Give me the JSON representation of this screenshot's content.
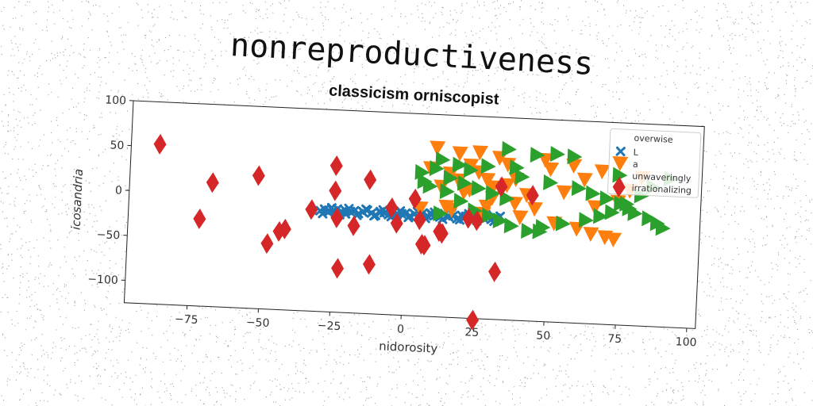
{
  "chart_data": {
    "type": "scatter",
    "title": "nonreproductiveness",
    "subtitle": "classicism orniscopist",
    "xlabel": "nidorosity",
    "ylabel": "icosandria",
    "xlim": [
      -97,
      103
    ],
    "ylim": [
      -125,
      100
    ],
    "xticks": [
      -75,
      -50,
      -25,
      0,
      25,
      50,
      75,
      100
    ],
    "yticks": [
      -100,
      -50,
      0,
      50,
      100
    ],
    "grid": false,
    "legend": {
      "title": "overwise",
      "position": "top-right"
    },
    "series": [
      {
        "name": "L",
        "marker": "x",
        "color": "#1f77b4",
        "x": [
          -30,
          -28.5,
          -27,
          -25.5,
          -24,
          -22.5,
          -21,
          -19.5,
          -18,
          -16.5,
          -15,
          -13.5,
          -12,
          -10.5,
          -9,
          -7.5,
          -6,
          -4.5,
          -3,
          -1.5,
          0,
          1.5,
          3,
          4.5,
          6,
          7.5,
          9,
          10.5,
          12,
          13.5,
          15,
          16.5,
          18,
          19.5,
          21,
          22.5,
          24,
          25.5,
          27,
          28.5,
          30,
          31.5,
          33,
          -29,
          -26,
          -23,
          -20,
          -17,
          -14,
          -11,
          -8,
          -5,
          -2,
          1,
          4,
          7,
          10,
          13,
          16,
          19,
          22,
          25,
          28,
          31,
          -27,
          -21,
          -15,
          -9,
          -3,
          3,
          9,
          15,
          21,
          27
        ],
        "y": [
          -13,
          -11,
          -14,
          -12,
          -10,
          -13,
          -15,
          -12,
          -11,
          -14,
          -12,
          -10,
          -13,
          -15,
          -11,
          -12,
          -14,
          -10,
          -13,
          -12,
          -11,
          -14,
          -12,
          -15,
          -10,
          -13,
          -11,
          -12,
          -14,
          -10,
          -13,
          -12,
          -15,
          -11,
          -12,
          -14,
          -10,
          -13,
          -12,
          -11,
          -14,
          -12,
          -10,
          -16,
          -9,
          -16,
          -9,
          -16,
          -9,
          -16,
          -9,
          -16,
          -9,
          -16,
          -9,
          -16,
          -9,
          -16,
          -9,
          -16,
          -9,
          -16,
          -9,
          -16,
          -12,
          -12,
          -12,
          -12,
          -12,
          -12,
          -12,
          -12,
          -12,
          -12
        ]
      },
      {
        "name": "a",
        "marker": "v",
        "color": "#ff7f0e",
        "x": [
          10,
          18,
          25,
          32,
          8,
          15,
          22,
          28,
          35,
          12,
          20,
          30,
          38,
          45,
          5,
          14,
          27,
          40,
          52,
          60,
          65,
          70,
          73,
          78,
          82,
          68,
          58,
          48,
          35,
          25,
          18,
          62,
          55,
          42,
          30,
          22,
          74,
          66,
          50,
          38,
          16,
          28
        ],
        "y": [
          63,
          58,
          60,
          55,
          40,
          35,
          45,
          30,
          25,
          20,
          15,
          10,
          5,
          0,
          -5,
          -2,
          -8,
          -10,
          -15,
          -20,
          -25,
          -28,
          -30,
          25,
          40,
          45,
          50,
          55,
          48,
          38,
          28,
          35,
          20,
          15,
          22,
          18,
          12,
          5,
          45,
          32,
          -5,
          0
        ]
      },
      {
        "name": "unwaveringly",
        "marker": ">",
        "color": "#2ca02c",
        "x": [
          35,
          45,
          52,
          58,
          12,
          18,
          22,
          28,
          40,
          50,
          60,
          65,
          70,
          75,
          78,
          80,
          85,
          88,
          90,
          15,
          20,
          25,
          30,
          35,
          10,
          5,
          8,
          14,
          19,
          24,
          29,
          33,
          37,
          43,
          48,
          55,
          63,
          68,
          72,
          77,
          82,
          86,
          92,
          6,
          12,
          38,
          47
        ],
        "y": [
          65,
          60,
          62,
          60,
          50,
          45,
          40,
          45,
          35,
          30,
          25,
          20,
          15,
          10,
          5,
          0,
          -5,
          -10,
          -15,
          30,
          25,
          20,
          15,
          10,
          40,
          35,
          20,
          15,
          5,
          -5,
          -10,
          -15,
          -20,
          -25,
          -20,
          -15,
          -10,
          -5,
          0,
          10,
          20,
          30,
          40,
          25,
          -10,
          45,
          -25
        ]
      },
      {
        "name": "irrationalizing",
        "marker": "D",
        "color": "#d62728",
        "x": [
          -87,
          -68,
          -72,
          -52,
          -48,
          -44,
          -42,
          -33,
          -25,
          -25,
          -24,
          -23,
          -18,
          -13,
          -12,
          -5,
          -3,
          3,
          5,
          6,
          7,
          12,
          13,
          22,
          25,
          25,
          32,
          33,
          44
        ],
        "y": [
          53,
          13,
          -28,
          23,
          -52,
          -38,
          -35,
          -12,
          38,
          10,
          -20,
          -76,
          -28,
          24,
          -70,
          -6,
          -23,
          5,
          -18,
          -45,
          -46,
          -30,
          -32,
          -14,
          -16,
          -132,
          -72,
          23,
          15
        ]
      }
    ]
  }
}
